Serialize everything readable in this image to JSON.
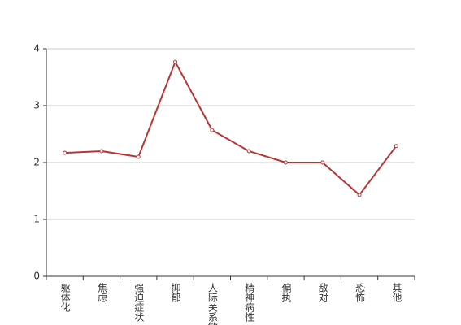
{
  "chart_data": {
    "type": "line",
    "categories": [
      "躯体化",
      "焦虑",
      "强迫症状",
      "抑郁",
      "人际关系敏感",
      "精神病性",
      "偏执",
      "敌对",
      "恐怖",
      "其他"
    ],
    "values": [
      2.17,
      2.2,
      2.1,
      3.77,
      2.57,
      2.2,
      2.0,
      2.0,
      1.43,
      2.29
    ],
    "color": "#b83535",
    "ylim": [
      0,
      4
    ],
    "yticks": [
      0,
      1,
      2,
      3,
      4
    ],
    "grid": true
  }
}
